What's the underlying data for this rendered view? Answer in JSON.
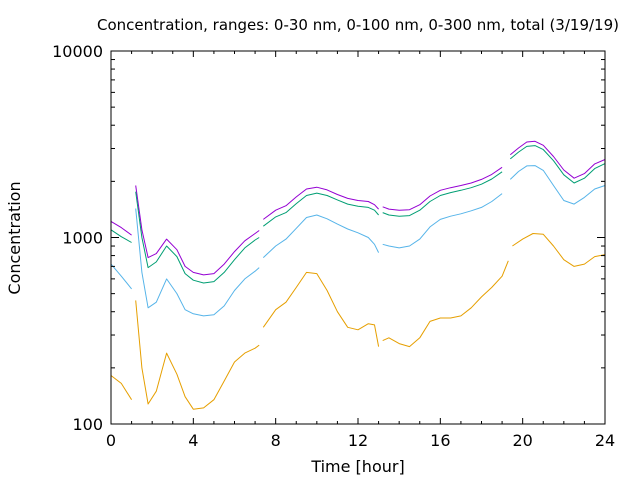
{
  "chart_data": {
    "type": "line",
    "title": "Concentration, ranges: 0-30 nm, 0-100 nm, 0-300 nm, total (3/19/19)",
    "xlabel": "Time [hour]",
    "ylabel": "Concentration",
    "xlim": [
      0,
      24
    ],
    "ylim": [
      100,
      10000
    ],
    "yscale": "log",
    "grid": false,
    "legend": "none",
    "x_ticks": [
      "0",
      "4",
      "8",
      "12",
      "16",
      "20",
      "24"
    ],
    "y_ticks": [
      "100",
      "1000",
      "10000"
    ],
    "series": [
      {
        "color": "#9400d3",
        "segments": [
          [
            [
              0,
              1220
            ],
            [
              0.5,
              1130
            ],
            [
              1.0,
              1030
            ]
          ],
          [
            [
              1.2,
              1900
            ],
            [
              1.5,
              1100
            ],
            [
              1.8,
              780
            ],
            [
              2.2,
              820
            ],
            [
              2.7,
              980
            ],
            [
              3.2,
              860
            ],
            [
              3.6,
              700
            ],
            [
              4.0,
              650
            ],
            [
              4.5,
              630
            ],
            [
              5.0,
              640
            ],
            [
              5.5,
              720
            ],
            [
              6.0,
              840
            ],
            [
              6.5,
              960
            ],
            [
              7.0,
              1050
            ],
            [
              7.2,
              1090
            ]
          ],
          [
            [
              7.4,
              1250
            ],
            [
              8.0,
              1400
            ],
            [
              8.5,
              1480
            ],
            [
              9.0,
              1650
            ],
            [
              9.5,
              1820
            ],
            [
              10.0,
              1860
            ],
            [
              10.5,
              1800
            ],
            [
              11.0,
              1700
            ],
            [
              11.5,
              1620
            ],
            [
              12.0,
              1580
            ],
            [
              12.5,
              1560
            ],
            [
              12.8,
              1500
            ],
            [
              13.0,
              1420
            ]
          ],
          [
            [
              13.2,
              1460
            ],
            [
              13.5,
              1420
            ],
            [
              14.0,
              1400
            ],
            [
              14.5,
              1410
            ],
            [
              15.0,
              1500
            ],
            [
              15.5,
              1670
            ],
            [
              16.0,
              1790
            ],
            [
              16.5,
              1850
            ],
            [
              17.0,
              1900
            ],
            [
              17.5,
              1960
            ],
            [
              18.0,
              2050
            ],
            [
              18.5,
              2180
            ],
            [
              19.0,
              2380
            ]
          ],
          [
            [
              19.4,
              2780
            ],
            [
              19.8,
              3020
            ],
            [
              20.2,
              3250
            ],
            [
              20.6,
              3280
            ],
            [
              21.0,
              3120
            ],
            [
              21.5,
              2720
            ],
            [
              22.0,
              2300
            ],
            [
              22.5,
              2080
            ],
            [
              23.0,
              2200
            ],
            [
              23.5,
              2480
            ],
            [
              24.0,
              2620
            ]
          ]
        ]
      },
      {
        "color": "#009e73",
        "segments": [
          [
            [
              0,
              1100
            ],
            [
              0.5,
              1010
            ],
            [
              1.0,
              940
            ]
          ],
          [
            [
              1.2,
              1760
            ],
            [
              1.5,
              1000
            ],
            [
              1.8,
              690
            ],
            [
              2.2,
              740
            ],
            [
              2.7,
              900
            ],
            [
              3.2,
              790
            ],
            [
              3.6,
              640
            ],
            [
              4.0,
              590
            ],
            [
              4.5,
              570
            ],
            [
              5.0,
              580
            ],
            [
              5.5,
              650
            ],
            [
              6.0,
              760
            ],
            [
              6.5,
              880
            ],
            [
              7.0,
              970
            ],
            [
              7.2,
              1000
            ]
          ],
          [
            [
              7.4,
              1150
            ],
            [
              8.0,
              1290
            ],
            [
              8.5,
              1360
            ],
            [
              9.0,
              1520
            ],
            [
              9.5,
              1680
            ],
            [
              10.0,
              1730
            ],
            [
              10.5,
              1680
            ],
            [
              11.0,
              1590
            ],
            [
              11.5,
              1510
            ],
            [
              12.0,
              1470
            ],
            [
              12.5,
              1450
            ],
            [
              12.8,
              1400
            ],
            [
              13.0,
              1320
            ]
          ],
          [
            [
              13.2,
              1360
            ],
            [
              13.5,
              1320
            ],
            [
              14.0,
              1300
            ],
            [
              14.5,
              1310
            ],
            [
              15.0,
              1400
            ],
            [
              15.5,
              1560
            ],
            [
              16.0,
              1680
            ],
            [
              16.5,
              1740
            ],
            [
              17.0,
              1790
            ],
            [
              17.5,
              1850
            ],
            [
              18.0,
              1930
            ],
            [
              18.5,
              2060
            ],
            [
              19.0,
              2250
            ]
          ],
          [
            [
              19.4,
              2640
            ],
            [
              19.8,
              2870
            ],
            [
              20.2,
              3080
            ],
            [
              20.6,
              3110
            ],
            [
              21.0,
              2960
            ],
            [
              21.5,
              2580
            ],
            [
              22.0,
              2170
            ],
            [
              22.5,
              1960
            ],
            [
              23.0,
              2080
            ],
            [
              23.5,
              2340
            ],
            [
              24.0,
              2490
            ]
          ]
        ]
      },
      {
        "color": "#56b4e9",
        "segments": [
          [
            [
              0,
              720
            ],
            [
              0.5,
              620
            ],
            [
              1.0,
              530
            ]
          ],
          [
            [
              1.2,
              1430
            ],
            [
              1.5,
              650
            ],
            [
              1.8,
              420
            ],
            [
              2.2,
              450
            ],
            [
              2.7,
              600
            ],
            [
              3.2,
              500
            ],
            [
              3.6,
              410
            ],
            [
              4.0,
              390
            ],
            [
              4.5,
              380
            ],
            [
              5.0,
              385
            ],
            [
              5.5,
              430
            ],
            [
              6.0,
              520
            ],
            [
              6.5,
              600
            ],
            [
              7.0,
              660
            ],
            [
              7.2,
              690
            ]
          ],
          [
            [
              7.4,
              780
            ],
            [
              8.0,
              900
            ],
            [
              8.5,
              980
            ],
            [
              9.0,
              1120
            ],
            [
              9.5,
              1280
            ],
            [
              10.0,
              1320
            ],
            [
              10.5,
              1260
            ],
            [
              11.0,
              1180
            ],
            [
              11.5,
              1110
            ],
            [
              12.0,
              1060
            ],
            [
              12.5,
              1000
            ],
            [
              12.8,
              920
            ],
            [
              13.0,
              830
            ]
          ],
          [
            [
              13.2,
              920
            ],
            [
              13.5,
              900
            ],
            [
              14.0,
              880
            ],
            [
              14.5,
              900
            ],
            [
              15.0,
              980
            ],
            [
              15.5,
              1140
            ],
            [
              16.0,
              1250
            ],
            [
              16.5,
              1300
            ],
            [
              17.0,
              1340
            ],
            [
              17.5,
              1390
            ],
            [
              18.0,
              1450
            ],
            [
              18.5,
              1560
            ],
            [
              19.0,
              1720
            ]
          ],
          [
            [
              19.4,
              2050
            ],
            [
              19.8,
              2260
            ],
            [
              20.2,
              2420
            ],
            [
              20.6,
              2430
            ],
            [
              21.0,
              2290
            ],
            [
              21.5,
              1900
            ],
            [
              22.0,
              1580
            ],
            [
              22.5,
              1510
            ],
            [
              23.0,
              1640
            ],
            [
              23.5,
              1820
            ],
            [
              24.0,
              1900
            ]
          ]
        ]
      },
      {
        "color": "#e69f00",
        "segments": [
          [
            [
              0,
              182
            ],
            [
              0.5,
              165
            ],
            [
              1.0,
              135
            ]
          ],
          [
            [
              1.2,
              460
            ],
            [
              1.5,
              200
            ],
            [
              1.8,
              128
            ],
            [
              2.2,
              150
            ],
            [
              2.7,
              240
            ],
            [
              3.2,
              185
            ],
            [
              3.6,
              140
            ],
            [
              4.0,
              120
            ],
            [
              4.5,
              122
            ],
            [
              5.0,
              135
            ],
            [
              5.5,
              170
            ],
            [
              6.0,
              215
            ],
            [
              6.5,
              240
            ],
            [
              7.0,
              255
            ],
            [
              7.2,
              265
            ]
          ],
          [
            [
              7.4,
              330
            ],
            [
              8.0,
              410
            ],
            [
              8.5,
              450
            ],
            [
              9.0,
              540
            ],
            [
              9.5,
              650
            ],
            [
              10.0,
              640
            ],
            [
              10.5,
              520
            ],
            [
              11.0,
              400
            ],
            [
              11.5,
              330
            ],
            [
              12.0,
              320
            ],
            [
              12.5,
              345
            ],
            [
              12.8,
              340
            ],
            [
              13.0,
              260
            ]
          ],
          [
            [
              13.2,
              280
            ],
            [
              13.5,
              290
            ],
            [
              14.0,
              270
            ],
            [
              14.5,
              260
            ],
            [
              15.0,
              290
            ],
            [
              15.5,
              355
            ],
            [
              16.0,
              370
            ],
            [
              16.5,
              370
            ],
            [
              17.0,
              380
            ],
            [
              17.5,
              420
            ],
            [
              18.0,
              480
            ],
            [
              18.5,
              540
            ],
            [
              19.0,
              620
            ],
            [
              19.3,
              750
            ]
          ],
          [
            [
              19.5,
              900
            ],
            [
              20.0,
              980
            ],
            [
              20.5,
              1050
            ],
            [
              21.0,
              1040
            ],
            [
              21.5,
              900
            ],
            [
              22.0,
              760
            ],
            [
              22.5,
              700
            ],
            [
              23.0,
              720
            ],
            [
              23.5,
              790
            ],
            [
              24.0,
              810
            ]
          ]
        ]
      }
    ]
  }
}
